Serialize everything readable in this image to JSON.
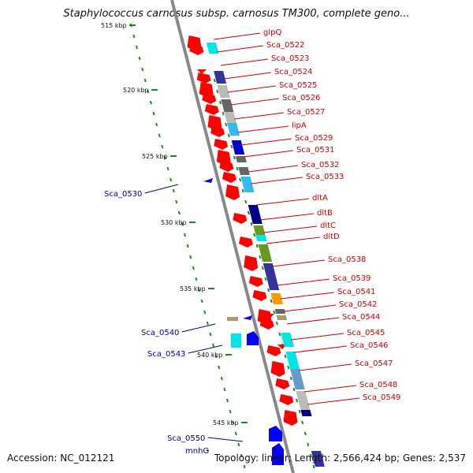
{
  "title": "Staphylococcus carnosus subsp. carnosus TM300, complete geno...",
  "footer": {
    "accession": "Accession: NC_012121",
    "stats": "Topology: linear; Length: 2,566,424 bp; Genes: 2,537"
  },
  "colors": {
    "backbone": "#888888",
    "forward_gene": "#ff0000",
    "reverse_gene": "#0000ff",
    "forward_label": "#cc0000",
    "reverse_label": "#000099",
    "tick": "#228822"
  },
  "scale_labels": [
    "515 kbp",
    "520 kbp",
    "525 kbp",
    "530 kbp",
    "535 kbp",
    "540 kbp",
    "545 kbp"
  ],
  "right_labels": [
    "glpQ",
    "Sca_0522",
    "Sca_0523",
    "Sca_0524",
    "Sca_0525",
    "Sca_0526",
    "Sca_0527",
    "lipA",
    "Sca_0529",
    "Sca_0531",
    "Sca_0532",
    "Sca_0533",
    "dltA",
    "dltB",
    "dltC",
    "dltD",
    "Sca_0538",
    "Sca_0539",
    "Sca_0541",
    "Sca_0542",
    "Sca_0544",
    "Sca_0545",
    "Sca_0546",
    "Sca_0547",
    "Sca_0548",
    "Sca_0549"
  ],
  "left_labels": [
    "Sca_0530",
    "Sca_0540",
    "Sca_0543",
    "Sca_0550",
    "mnhG"
  ],
  "cog_colors": [
    "#00e5e5",
    "#333399",
    "#bbbbbb",
    "#666666",
    "#33bbee",
    "#0000cc",
    "#000088",
    "#669922",
    "#ff9900",
    "#aa9966",
    "#6699cc"
  ]
}
